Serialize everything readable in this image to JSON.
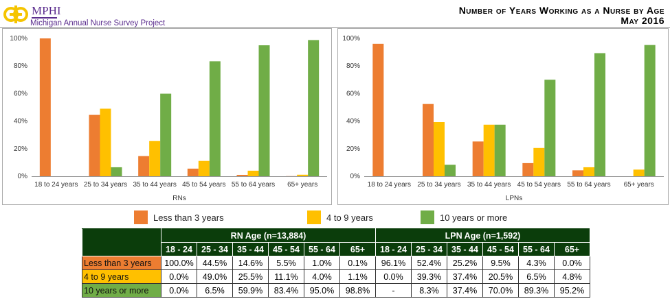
{
  "header": {
    "logo_text": "MPHI",
    "logo_subtitle": "Michigan Annual Nurse Survey Project",
    "title_line1": "Number of Years Working as a Nurse by Age",
    "title_line2": "May 2016"
  },
  "colors": {
    "less_than_3": "#ed7d31",
    "four_to_nine": "#ffc000",
    "ten_plus": "#70ad47",
    "table_header": "#0b3d0b"
  },
  "legend": [
    "Less than 3 years",
    "4 to 9 years",
    "10 years or more"
  ],
  "chart_data": [
    {
      "type": "bar",
      "xlabel": "RNs",
      "ylim": [
        0,
        100
      ],
      "yticks": [
        "0%",
        "20%",
        "40%",
        "60%",
        "80%",
        "100%"
      ],
      "categories": [
        "18 to 24 years",
        "25 to 34 years",
        "35 to 44 years",
        "45 to 54 years",
        "55 to 64 years",
        "65+ years"
      ],
      "series": [
        {
          "name": "Less than 3 years",
          "values": [
            100.0,
            44.5,
            14.6,
            5.5,
            1.0,
            0.1
          ]
        },
        {
          "name": "4 to 9 years",
          "values": [
            0.0,
            49.0,
            25.5,
            11.1,
            4.0,
            1.1
          ]
        },
        {
          "name": "10 years or more",
          "values": [
            0.0,
            6.5,
            59.9,
            83.4,
            95.0,
            98.8
          ]
        }
      ]
    },
    {
      "type": "bar",
      "xlabel": "LPNs",
      "ylim": [
        0,
        100
      ],
      "yticks": [
        "0%",
        "20%",
        "40%",
        "60%",
        "80%",
        "100%"
      ],
      "categories": [
        "18 to 24 years",
        "25 to 34 years",
        "35 to 44 years",
        "45 to 54 years",
        "55 to 64 years",
        "65+ years"
      ],
      "series": [
        {
          "name": "Less than 3 years",
          "values": [
            96.1,
            52.4,
            25.2,
            9.5,
            4.3,
            0.0
          ]
        },
        {
          "name": "4 to 9 years",
          "values": [
            0.0,
            39.3,
            37.4,
            20.5,
            6.5,
            4.8
          ]
        },
        {
          "name": "10 years or more",
          "values": [
            null,
            8.3,
            37.4,
            70.0,
            89.3,
            95.2
          ]
        }
      ]
    }
  ],
  "table": {
    "rn_header": "RN Age (n=13,884)",
    "lpn_header": "LPN Age (n=1,592)",
    "age_groups": [
      "18 - 24",
      "25 - 34",
      "35 - 44",
      "45 - 54",
      "55 - 64",
      "65+"
    ],
    "rows": [
      {
        "label": "Less than 3 years",
        "rn": [
          "100.0%",
          "44.5%",
          "14.6%",
          "5.5%",
          "1.0%",
          "0.1%"
        ],
        "lpn": [
          "96.1%",
          "52.4%",
          "25.2%",
          "9.5%",
          "4.3%",
          "0.0%"
        ]
      },
      {
        "label": "4 to 9 years",
        "rn": [
          "0.0%",
          "49.0%",
          "25.5%",
          "11.1%",
          "4.0%",
          "1.1%"
        ],
        "lpn": [
          "0.0%",
          "39.3%",
          "37.4%",
          "20.5%",
          "6.5%",
          "4.8%"
        ]
      },
      {
        "label": "10 years or more",
        "rn": [
          "0.0%",
          "6.5%",
          "59.9%",
          "83.4%",
          "95.0%",
          "98.8%"
        ],
        "lpn": [
          "-",
          "8.3%",
          "37.4%",
          "70.0%",
          "89.3%",
          "95.2%"
        ]
      }
    ]
  }
}
